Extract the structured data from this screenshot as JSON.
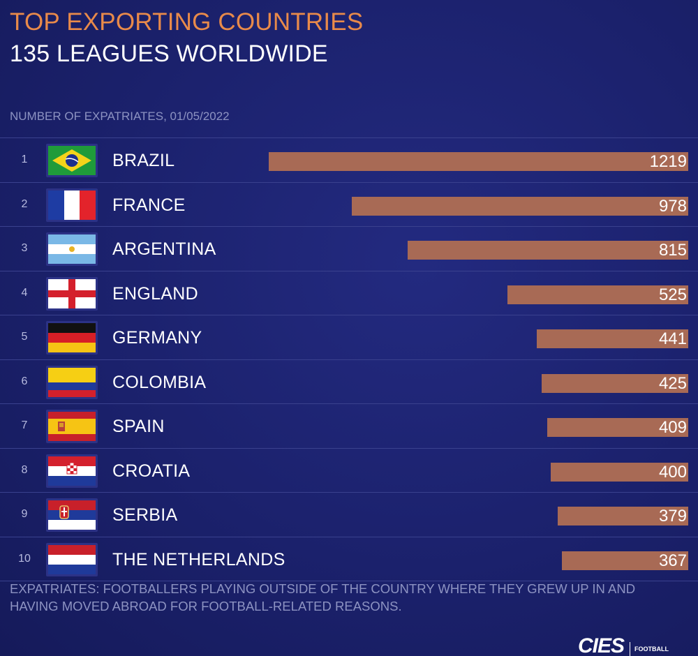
{
  "header": {
    "title": "TOP EXPORTING COUNTRIES",
    "subtitle": "135 LEAGUES WORLDWIDE",
    "caption": "NUMBER OF EXPATRIATES, 01/05/2022"
  },
  "chart_data": {
    "type": "bar",
    "orientation": "horizontal",
    "title": "TOP EXPORTING COUNTRIES",
    "subtitle": "135 LEAGUES WORLDWIDE",
    "xlabel": "NUMBER OF EXPATRIATES, 01/05/2022",
    "ylabel": "",
    "xlim": [
      0,
      2000
    ],
    "grid": false,
    "bar_color": "#a86a55",
    "rows": [
      {
        "rank": "1",
        "country": "BRAZIL",
        "value": 1219,
        "label": "1219",
        "flag": "brazil-flag-icon"
      },
      {
        "rank": "2",
        "country": "FRANCE",
        "value": 978,
        "label": "978",
        "flag": "france-flag-icon"
      },
      {
        "rank": "3",
        "country": "ARGENTINA",
        "value": 815,
        "label": "815",
        "flag": "argentina-flag-icon"
      },
      {
        "rank": "4",
        "country": "ENGLAND",
        "value": 525,
        "label": "525",
        "flag": "england-flag-icon"
      },
      {
        "rank": "5",
        "country": "GERMANY",
        "value": 441,
        "label": "441",
        "flag": "germany-flag-icon"
      },
      {
        "rank": "6",
        "country": "COLOMBIA",
        "value": 425,
        "label": "425",
        "flag": "colombia-flag-icon"
      },
      {
        "rank": "7",
        "country": "SPAIN",
        "value": 409,
        "label": "409",
        "flag": "spain-flag-icon"
      },
      {
        "rank": "8",
        "country": "CROATIA",
        "value": 400,
        "label": "400",
        "flag": "croatia-flag-icon"
      },
      {
        "rank": "9",
        "country": "SERBIA",
        "value": 379,
        "label": "379",
        "flag": "serbia-flag-icon"
      },
      {
        "rank": "10",
        "country": "THE NETHERLANDS",
        "value": 367,
        "label": "367",
        "flag": "netherlands-flag-icon"
      }
    ]
  },
  "footer": {
    "note": "EXPATRIATES: FOOTBALLERS PLAYING OUTSIDE OF THE COUNTRY WHERE THEY GREW UP IN AND HAVING MOVED ABROAD FOR FOOTBALL-RELATED REASONS.",
    "logo": "CIES",
    "logo_sub": "FOOTBALL"
  },
  "colors": {
    "background": "#1b216c",
    "title": "#e88a4a",
    "bar": "#a86a55",
    "caption": "#8d93c2"
  }
}
